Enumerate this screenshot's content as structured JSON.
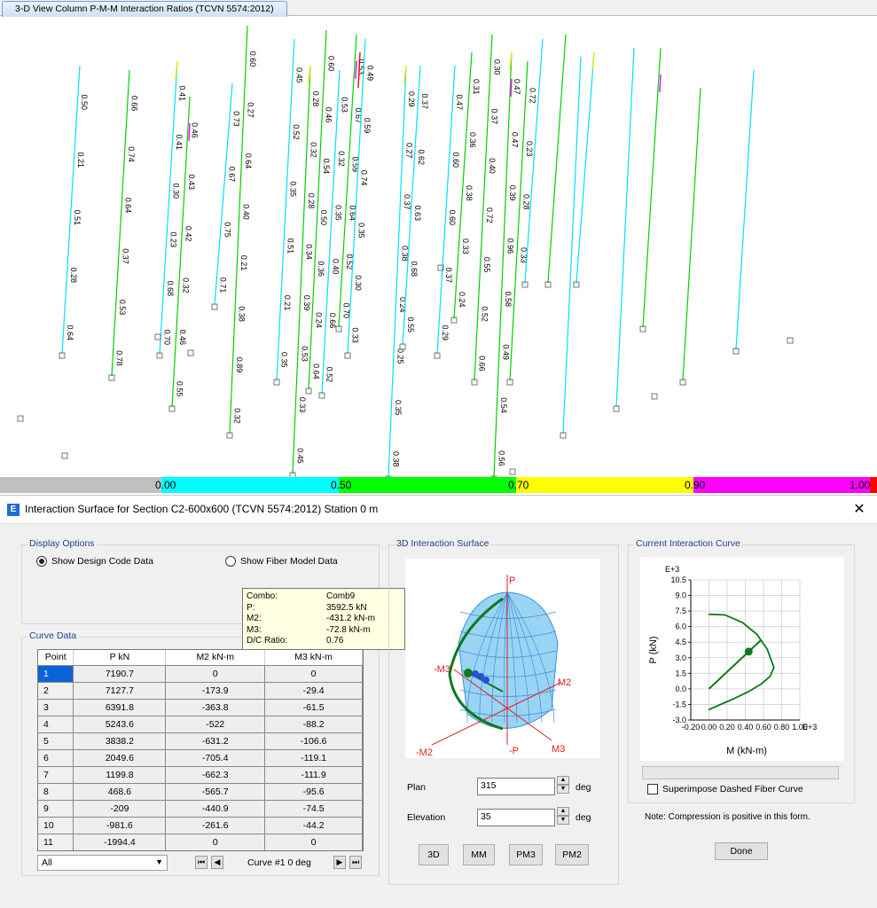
{
  "window": {
    "tab_title": "3-D View  Column P-M-M Interaction Ratios  (TCVN 5574:2012)"
  },
  "view3d": {
    "ratio_labels": [
      "0.50",
      "0.21",
      "0.51",
      "0.28",
      "0.64",
      "0.66",
      "0.74",
      "0.64",
      "0.37",
      "0.53",
      "0.78",
      "0.41",
      "0.41",
      "0.30",
      "0.23",
      "0.68",
      "0.70",
      "0.46",
      "0.43",
      "0.42",
      "0.32",
      "0.46",
      "0.55",
      "0.73",
      "0.67",
      "0.75",
      "0.71",
      "0.60",
      "0.27",
      "0.64",
      "0.40",
      "0.21",
      "0.38",
      "0.89",
      "0.32",
      "0.45",
      "0.52",
      "0.35",
      "0.51",
      "0.21",
      "0.35",
      "0.28",
      "0.32",
      "0.28",
      "0.34",
      "0.39",
      "0.53",
      "0.33",
      "0.45",
      "0.60",
      "0.46",
      "0.54",
      "0.50",
      "0.36",
      "0.24",
      "0.64",
      "0.53",
      "0.32",
      "0.35",
      "0.40",
      "0.66",
      "0.52",
      "0.53",
      "0.67",
      "0.59",
      "0.64",
      "0.52",
      "0.70",
      "0.49",
      "0.59",
      "0.74",
      "0.35",
      "0.30",
      "0.33",
      "0.29",
      "0.27",
      "0.37",
      "0.38",
      "0.24",
      "0.25",
      "0.35",
      "0.38",
      "0.37",
      "0.62",
      "0.63",
      "0.68",
      "0.55",
      "0.47",
      "0.60",
      "0.60",
      "0.37",
      "0.29",
      "0.31",
      "0.36",
      "0.38",
      "0.33",
      "0.24",
      "0.30",
      "0.37",
      "0.40",
      "0.72",
      "0.55",
      "0.52",
      "0.66",
      "0.47",
      "0.47",
      "0.39",
      "0.96",
      "0.58",
      "0.49",
      "0.54",
      "0.56",
      "0.72",
      "0.23",
      "0.28",
      "0.33"
    ],
    "colors": {
      "cyan": "#00ffff",
      "green": "#00c800",
      "yellow": "#ffff00",
      "magenta": "#ff00ff"
    }
  },
  "legend": {
    "ticks": [
      "0.00",
      "0.50",
      "0.70",
      "0.90",
      "1.00"
    ],
    "colors": [
      "#c0c0c0",
      "#00ffff",
      "#00ff00",
      "#ffff00",
      "#ff00ff",
      "#ff0000"
    ]
  },
  "dialog": {
    "title": "Interaction Surface for Section C2-600x600 (TCVN 5574:2012)  Station 0 m",
    "display_options": {
      "label": "Display Options",
      "option_design": "Show Design Code Data",
      "option_fiber": "Show Fiber Model Data"
    },
    "tooltip": {
      "combo_label": "Combo:",
      "combo_value": "Comb9",
      "p_label": "P:",
      "p_value": "3592.5 kN",
      "m2_label": "M2:",
      "m2_value": "-431.2 kN-m",
      "m3_label": "M3:",
      "m3_value": "-72.8 kN-m",
      "dc_label": "D/C Ratio:",
      "dc_value": "0.76"
    },
    "curve_data": {
      "label": "Curve Data",
      "headers": [
        "Point",
        "P  kN",
        "M2  kN-m",
        "M3  kN-m"
      ],
      "rows": [
        [
          "1",
          "7190.7",
          "0",
          "0"
        ],
        [
          "2",
          "7127.7",
          "-173.9",
          "-29.4"
        ],
        [
          "3",
          "6391.8",
          "-363.8",
          "-61.5"
        ],
        [
          "4",
          "5243.6",
          "-522",
          "-88.2"
        ],
        [
          "5",
          "3838.2",
          "-631.2",
          "-106.6"
        ],
        [
          "6",
          "2049.6",
          "-705.4",
          "-119.1"
        ],
        [
          "7",
          "1199.8",
          "-662.3",
          "-111.9"
        ],
        [
          "8",
          "468.6",
          "-565.7",
          "-95.6"
        ],
        [
          "9",
          "-209",
          "-440.9",
          "-74.5"
        ],
        [
          "10",
          "-981.6",
          "-261.6",
          "-44.2"
        ],
        [
          "11",
          "-1994.4",
          "0",
          "0"
        ]
      ],
      "filter_value": "All",
      "curve_label": "Curve #1  0 deg"
    },
    "surface": {
      "label": "3D Interaction Surface",
      "axis_p": "P",
      "axis_neg_p": "-P",
      "axis_m2": "M2",
      "axis_neg_m2": "-M2",
      "axis_m3": "M3",
      "axis_neg_m3": "-M3",
      "plan_label": "Plan",
      "plan_value": "315",
      "plan_unit": "deg",
      "elevation_label": "Elevation",
      "elevation_value": "35",
      "elevation_unit": "deg",
      "buttons": [
        "3D",
        "MM",
        "PM3",
        "PM2"
      ]
    },
    "current_curve": {
      "label": "Current Interaction Curve",
      "exponent": "E+3",
      "x_exponent": "E+3",
      "ylabel": "P (kN)",
      "xlabel": "M (kN-m)",
      "superimpose_label": "Superimpose Dashed Fiber Curve",
      "note": "Note:  Compression is positive in this form.",
      "done_label": "Done"
    },
    "chart_data": {
      "type": "line",
      "title": "",
      "xlabel": "M (kN-m)",
      "ylabel": "P (kN)",
      "xlim": [
        -0.2,
        1.0
      ],
      "ylim": [
        -3.0,
        10.5
      ],
      "x_ticks": [
        "-0.20",
        "0.00",
        "0.20",
        "0.40",
        "0.60",
        "0.80",
        "1.00"
      ],
      "y_ticks": [
        "10.5",
        "9.0",
        "7.5",
        "6.0",
        "4.5",
        "3.0",
        "1.5",
        "0.0",
        "-1.5",
        "-3.0"
      ],
      "series": [
        {
          "x": [
            0.0,
            0.176,
            0.369,
            0.529,
            0.64,
            0.715,
            0.672,
            0.574,
            0.447,
            0.265,
            0.0
          ],
          "y": [
            7.191,
            7.128,
            6.392,
            5.244,
            3.838,
            2.05,
            1.2,
            0.469,
            -0.209,
            -0.982,
            -1.994
          ]
        }
      ],
      "demand_point": {
        "x": 0.437,
        "y": 3.593
      },
      "grid": true
    }
  }
}
